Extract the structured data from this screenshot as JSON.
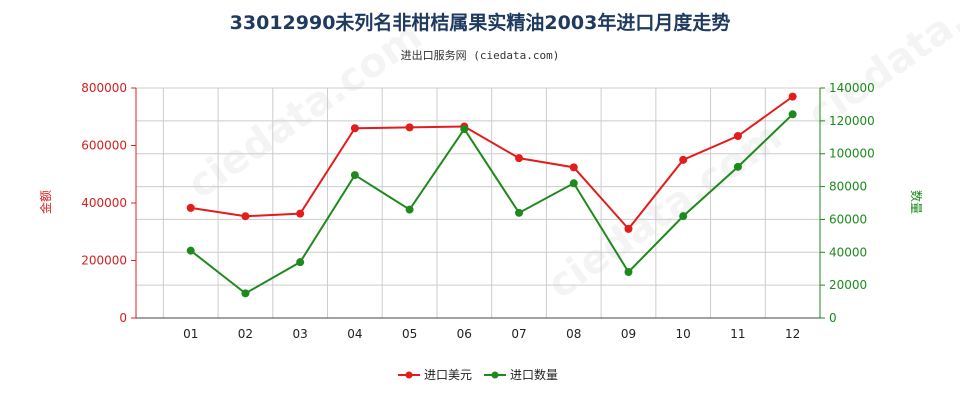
{
  "title": "33012990未列名非柑桔属果实精油2003年进口月度走势",
  "subtitle": "进出口服务网 (ciedata.com)",
  "colors": {
    "amount": "#e31c1c",
    "quantity": "#1e8a1e",
    "grid": "#cccccc",
    "left_axis_text": "#d42020",
    "right_axis_text": "#1e8a1e"
  },
  "chart_data": {
    "type": "line",
    "categories": [
      "01",
      "02",
      "03",
      "04",
      "05",
      "06",
      "07",
      "08",
      "09",
      "10",
      "11",
      "12"
    ],
    "y_left": {
      "label": "金额",
      "range": [
        0,
        800000
      ],
      "ticks": [
        0,
        200000,
        400000,
        600000,
        800000
      ]
    },
    "y_right": {
      "label": "数量",
      "range": [
        0,
        140000
      ],
      "ticks": [
        0,
        20000,
        40000,
        60000,
        80000,
        100000,
        120000,
        140000
      ]
    },
    "series": [
      {
        "name": "进口美元",
        "axis": "left",
        "color": "#e31c1c",
        "values": [
          383000,
          354000,
          363000,
          660000,
          663000,
          666000,
          556000,
          524000,
          310000,
          550000,
          633000,
          770000
        ]
      },
      {
        "name": "进口数量",
        "axis": "right",
        "color": "#1e8a1e",
        "values": [
          41000,
          15000,
          34000,
          87000,
          66000,
          115000,
          64000,
          82000,
          28000,
          62000,
          92000,
          124000
        ]
      }
    ],
    "grid": true,
    "legend": "bottom-center"
  }
}
